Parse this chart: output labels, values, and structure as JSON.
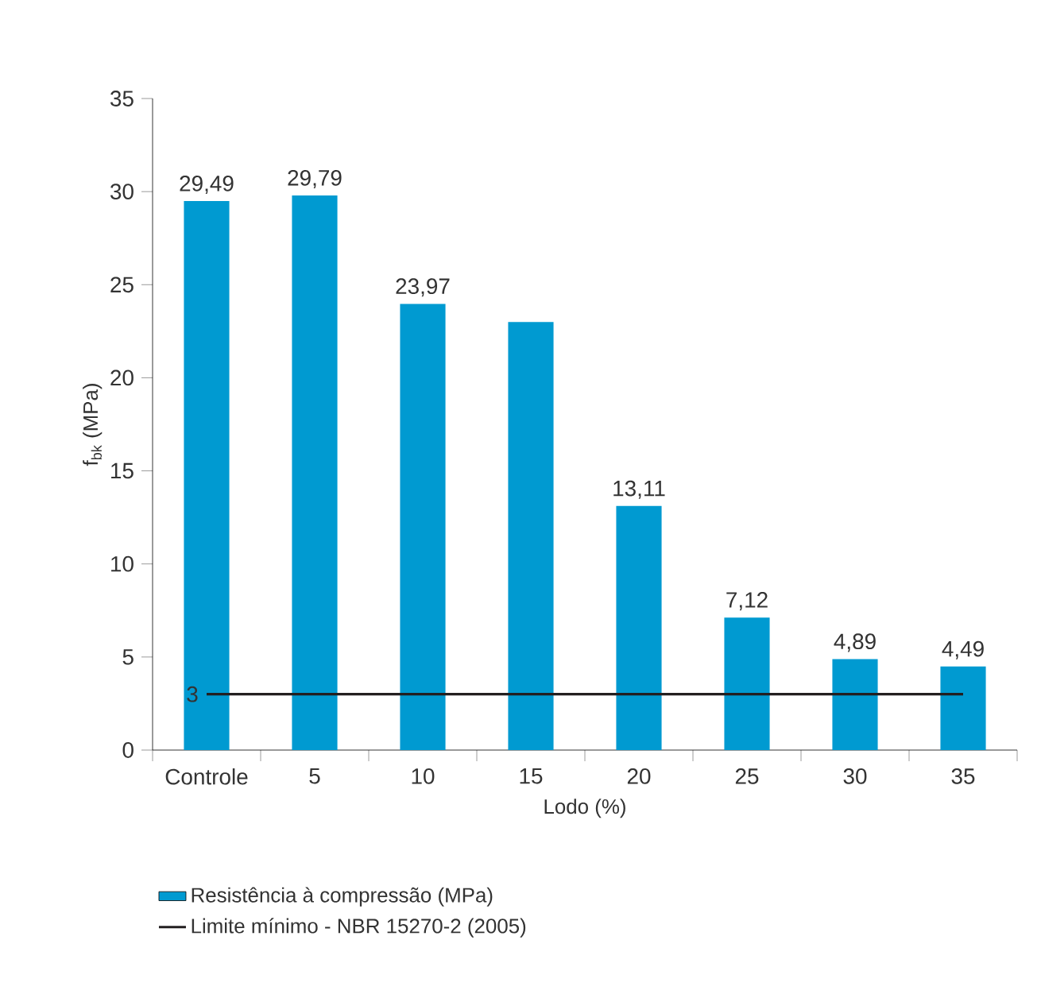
{
  "chart_data": {
    "type": "bar",
    "xlabel": "Lodo (%)",
    "ylabel": "f$_{bk}$ (MPa)",
    "categories": [
      "Controle",
      "5",
      "10",
      "15",
      "20",
      "25",
      "30",
      "35"
    ],
    "ylim": [
      0,
      35
    ],
    "yticks": [
      0,
      5,
      10,
      15,
      20,
      25,
      30,
      35
    ],
    "legend": "bottom",
    "grid": false,
    "series": [
      {
        "name": "Resistência à compressão (MPa)",
        "color": "#009ad1",
        "values": [
          29.49,
          29.79,
          23.97,
          23.0,
          13.11,
          7.12,
          4.89,
          4.49
        ],
        "value_labels": [
          "29,49",
          "29,79",
          "23,97",
          null,
          "13,11",
          "7,12",
          "4,89",
          "4,49"
        ]
      },
      {
        "name": "Limite mínimo - NBR 15270-2 (2005)",
        "type": "line",
        "color": "#231f20",
        "values": [
          3,
          3,
          3,
          3,
          3,
          3,
          3,
          3
        ],
        "value_labels": [
          "3",
          null,
          null,
          null,
          null,
          null,
          null,
          null
        ]
      }
    ]
  }
}
